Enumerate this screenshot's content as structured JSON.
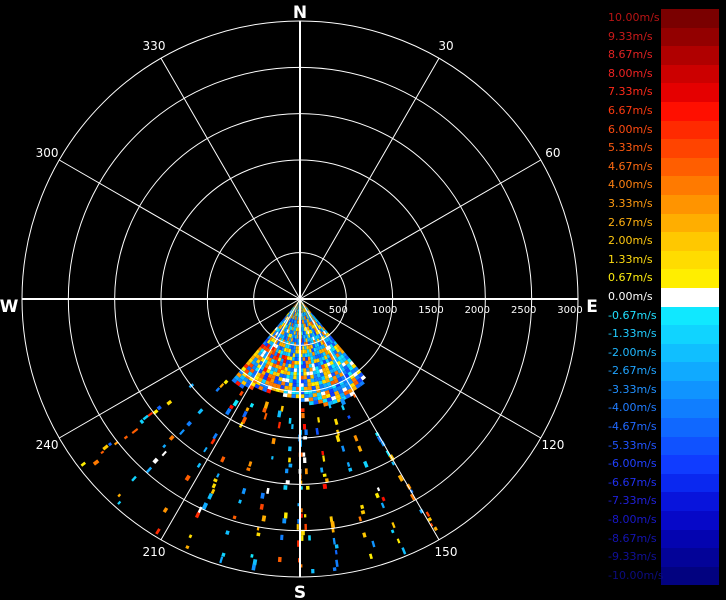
{
  "chart_data": {
    "type": "polar-radial-velocity-scan",
    "compass": {
      "north": "N",
      "east": "E",
      "south": "S",
      "west": "W"
    },
    "azimuth_labels": [
      "30",
      "60",
      "120",
      "150",
      "210",
      "240",
      "300",
      "330"
    ],
    "range_labels": [
      "500",
      "1000",
      "1500",
      "2000",
      "2500",
      "3000"
    ],
    "range_max": 3000,
    "ring_count": 6,
    "spoke_step_deg": 30,
    "sector": {
      "az_start": 140,
      "az_end": 220,
      "dense_range_max": 1100
    },
    "colorbar": [
      {
        "label": "10.00m/s",
        "value": 10.0,
        "color": "#7a0000",
        "text_color": "#b81414"
      },
      {
        "label": "9.33m/s",
        "value": 9.33,
        "color": "#930000",
        "text_color": "#cc1a1a"
      },
      {
        "label": "8.67m/s",
        "value": 8.67,
        "color": "#b00000",
        "text_color": "#e02222"
      },
      {
        "label": "8.00m/s",
        "value": 8.0,
        "color": "#cc0000",
        "text_color": "#ee2222"
      },
      {
        "label": "7.33m/s",
        "value": 7.33,
        "color": "#e50000",
        "text_color": "#ff2a1a"
      },
      {
        "label": "6.67m/s",
        "value": 6.67,
        "color": "#ff0f00",
        "text_color": "#ff3a10"
      },
      {
        "label": "6.00m/s",
        "value": 6.0,
        "color": "#ff2a00",
        "text_color": "#ff4a10"
      },
      {
        "label": "5.33m/s",
        "value": 5.33,
        "color": "#ff4400",
        "text_color": "#ff5a10"
      },
      {
        "label": "4.67m/s",
        "value": 4.67,
        "color": "#ff5e00",
        "text_color": "#ff6a10"
      },
      {
        "label": "4.00m/s",
        "value": 4.0,
        "color": "#ff7a00",
        "text_color": "#ff8010"
      },
      {
        "label": "3.33m/s",
        "value": 3.33,
        "color": "#ff9400",
        "text_color": "#ff9a10"
      },
      {
        "label": "2.67m/s",
        "value": 2.67,
        "color": "#ffae00",
        "text_color": "#ffb010"
      },
      {
        "label": "2.00m/s",
        "value": 2.0,
        "color": "#ffc800",
        "text_color": "#ffc810"
      },
      {
        "label": "1.33m/s",
        "value": 1.33,
        "color": "#ffdc00",
        "text_color": "#ffdc10"
      },
      {
        "label": "0.67m/s",
        "value": 0.67,
        "color": "#ffee00",
        "text_color": "#ffee10"
      },
      {
        "label": "0.00m/s",
        "value": 0.0,
        "color": "#ffffff",
        "text_color": "#ffffff"
      },
      {
        "label": "-0.67m/s",
        "value": -0.67,
        "color": "#10e8ff",
        "text_color": "#20e0ff"
      },
      {
        "label": "-1.33m/s",
        "value": -1.33,
        "color": "#10d4ff",
        "text_color": "#20ccff"
      },
      {
        "label": "-2.00m/s",
        "value": -2.0,
        "color": "#10bfff",
        "text_color": "#20b8ff"
      },
      {
        "label": "-2.67m/s",
        "value": -2.67,
        "color": "#10aaff",
        "text_color": "#20a4ff"
      },
      {
        "label": "-3.33m/s",
        "value": -3.33,
        "color": "#1094ff",
        "text_color": "#2090ff"
      },
      {
        "label": "-4.00m/s",
        "value": -4.0,
        "color": "#107eff",
        "text_color": "#207cff"
      },
      {
        "label": "-4.67m/s",
        "value": -4.67,
        "color": "#1068ff",
        "text_color": "#2068ff"
      },
      {
        "label": "-5.33m/s",
        "value": -5.33,
        "color": "#1052ff",
        "text_color": "#2054ff"
      },
      {
        "label": "-6.00m/s",
        "value": -6.0,
        "color": "#103cff",
        "text_color": "#2040ff"
      },
      {
        "label": "-6.67m/s",
        "value": -6.67,
        "color": "#0a28f0",
        "text_color": "#2030f0"
      },
      {
        "label": "-7.33m/s",
        "value": -7.33,
        "color": "#0814dc",
        "text_color": "#2020dc"
      },
      {
        "label": "-8.00m/s",
        "value": -8.0,
        "color": "#0608c8",
        "text_color": "#1818c8"
      },
      {
        "label": "-8.67m/s",
        "value": -8.67,
        "color": "#0404b0",
        "text_color": "#1414b0"
      },
      {
        "label": "-9.33m/s",
        "value": -9.33,
        "color": "#030398",
        "text_color": "#101098"
      },
      {
        "label": "-10.00m/s",
        "value": -10.0,
        "color": "#020280",
        "text_color": "#0c0c80"
      }
    ]
  }
}
